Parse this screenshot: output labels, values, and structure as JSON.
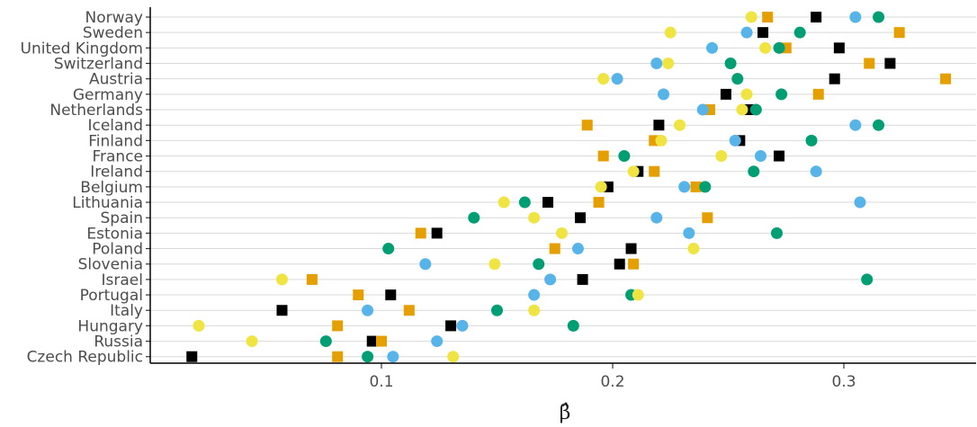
{
  "chart_data": {
    "type": "scatter",
    "xlabel": "β̂",
    "ylabel": "",
    "xlim": [
      0.0,
      0.345
    ],
    "xticks": [
      0.1,
      0.2,
      0.3
    ],
    "xtick_labels": [
      "0.1",
      "0.2",
      "0.3"
    ],
    "grid": "horizontal",
    "legend": "none",
    "categories": [
      "Norway",
      "Sweden",
      "United Kingdom",
      "Switzerland",
      "Austria",
      "Germany",
      "Netherlands",
      "Iceland",
      "Finland",
      "France",
      "Ireland",
      "Belgium",
      "Lithuania",
      "Spain",
      "Estonia",
      "Poland",
      "Slovenia",
      "Israel",
      "Portugal",
      "Italy",
      "Hungary",
      "Russia",
      "Czech Republic"
    ],
    "series": [
      {
        "color": "#000000",
        "shape": "square",
        "values": [
          0.288,
          0.265,
          0.298,
          0.32,
          0.296,
          0.249,
          0.259,
          0.22,
          0.255,
          0.272,
          0.211,
          0.198,
          0.172,
          0.186,
          0.124,
          0.208,
          0.203,
          0.187,
          0.104,
          0.057,
          0.13,
          0.096,
          0.018
        ]
      },
      {
        "color": "#E69F00",
        "shape": "square",
        "values": [
          0.267,
          0.324,
          0.275,
          0.311,
          0.344,
          0.289,
          0.242,
          0.189,
          0.218,
          0.196,
          0.218,
          0.236,
          0.194,
          0.241,
          0.117,
          0.175,
          0.209,
          0.07,
          0.09,
          0.112,
          0.081,
          0.1,
          0.081
        ]
      },
      {
        "color": "#56B4E9",
        "shape": "circle",
        "values": [
          0.305,
          0.258,
          0.243,
          0.219,
          0.202,
          0.222,
          0.239,
          0.305,
          0.253,
          0.264,
          0.288,
          0.231,
          0.307,
          0.219,
          0.233,
          0.185,
          0.119,
          0.173,
          0.166,
          0.094,
          0.135,
          0.124,
          0.105
        ]
      },
      {
        "color": "#009E73",
        "shape": "circle",
        "values": [
          0.315,
          0.281,
          0.272,
          0.251,
          0.254,
          0.273,
          0.262,
          0.315,
          0.286,
          0.205,
          0.261,
          0.24,
          0.162,
          0.14,
          0.271,
          0.103,
          0.168,
          0.31,
          0.208,
          0.15,
          0.183,
          0.076,
          0.094
        ]
      },
      {
        "color": "#F0E442",
        "shape": "circle",
        "values": [
          0.26,
          0.225,
          0.266,
          0.224,
          0.196,
          0.258,
          0.256,
          0.229,
          0.221,
          0.247,
          0.209,
          0.195,
          0.153,
          0.166,
          0.178,
          0.235,
          0.149,
          0.057,
          0.211,
          0.166,
          0.021,
          0.044,
          0.131
        ]
      }
    ]
  }
}
